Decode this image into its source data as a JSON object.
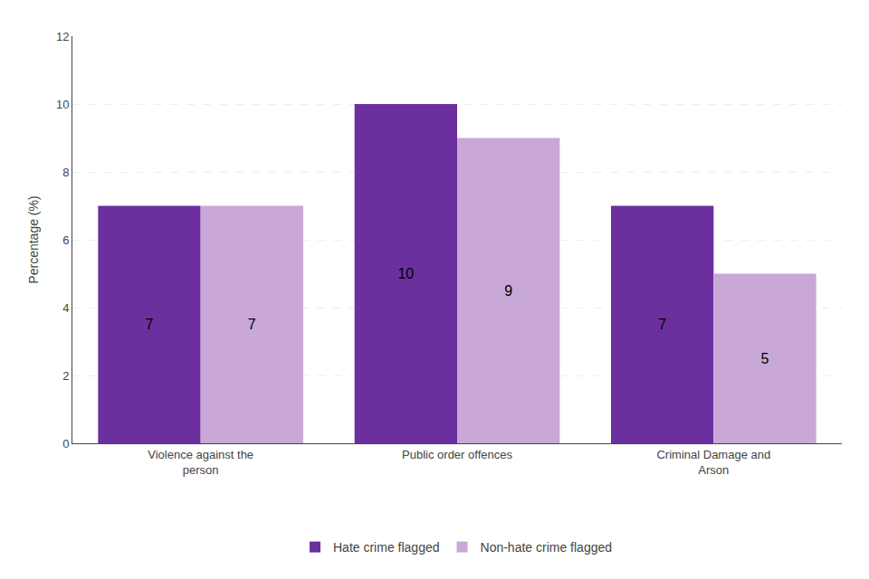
{
  "chart_data": {
    "type": "bar",
    "categories": [
      "Violence against the\nperson",
      "Public order offences",
      "Criminal Damage and\nArson"
    ],
    "series": [
      {
        "name": "Hate crime flagged",
        "color": "#6B2F9E",
        "values": [
          7,
          10,
          7
        ]
      },
      {
        "name": "Non-hate crime flagged",
        "color": "#C9A8D8",
        "values": [
          7,
          9,
          5
        ]
      }
    ],
    "ylabel": "Percentage (%)",
    "ylim": [
      0,
      12
    ],
    "yticks": [
      0,
      2,
      4,
      6,
      8,
      10,
      12
    ],
    "grid": true,
    "legend": "bottom",
    "data_labels": true
  }
}
